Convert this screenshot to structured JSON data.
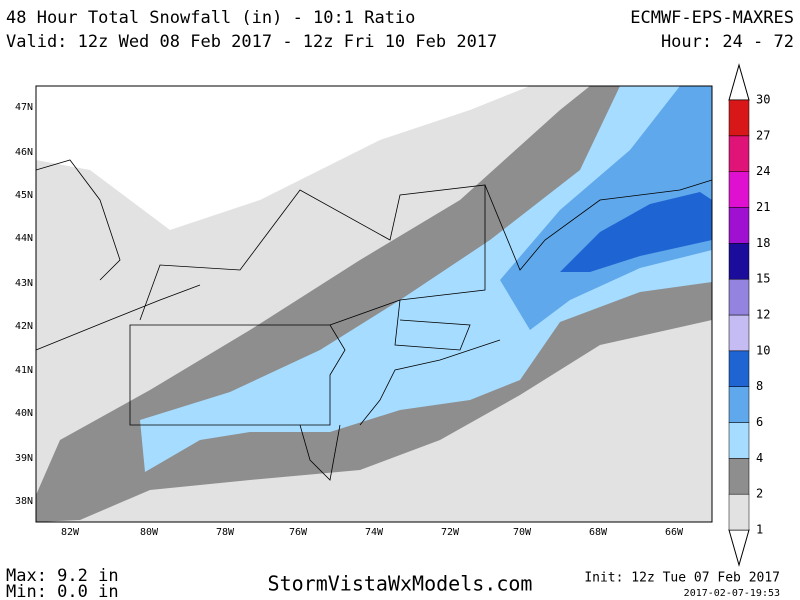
{
  "header": {
    "title": "48 Hour Total Snowfall (in) - 10:1 Ratio",
    "valid": "Valid: 12z Wed 08 Feb 2017 - 12z Fri 10 Feb 2017",
    "model": "ECMWF-EPS-MAXRES",
    "hours": "Hour: 24 - 72"
  },
  "map": {
    "lat_labels": [
      "47N",
      "46N",
      "45N",
      "44N",
      "43N",
      "42N",
      "41N",
      "40N",
      "39N",
      "38N"
    ],
    "lon_labels": [
      "82W",
      "80W",
      "78W",
      "76W",
      "74W",
      "72W",
      "70W",
      "68W",
      "66W"
    ]
  },
  "legend": {
    "levels": [
      1,
      2,
      4,
      6,
      8,
      10,
      12,
      15,
      18,
      21,
      24,
      27,
      30
    ],
    "colors": [
      "#e2e2e2",
      "#8e8e8e",
      "#a6dcff",
      "#60a8ec",
      "#1e64d2",
      "#c4bcf2",
      "#9484e0",
      "#1c0c9c",
      "#a010d0",
      "#e010d0",
      "#e01478",
      "#d81818"
    ]
  },
  "footer": {
    "max": "Max: 9.2 in",
    "min": "Min: 0.0 in",
    "site": "StormVistaWxModels.com",
    "init": "Init: 12z Tue 07 Feb 2017",
    "stamp": "2017-02-07-19:53"
  }
}
